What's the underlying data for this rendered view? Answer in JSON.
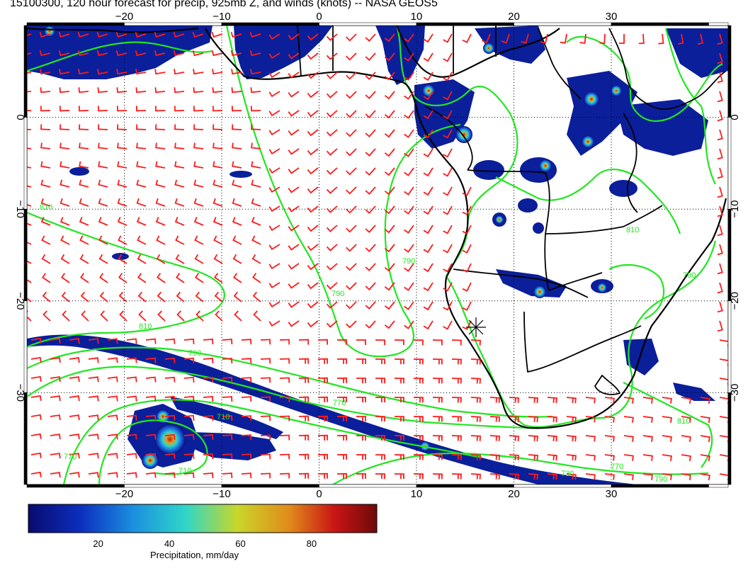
{
  "title": "15100300, 120 hour forecast for precip, 925mb Z, and winds (knots) -- NASA GEOS5",
  "map": {
    "lon_ticks": [
      "−20",
      "−10",
      "0",
      "10",
      "20",
      "30"
    ],
    "lat_ticks": [
      "0",
      "−10",
      "−20",
      "−30"
    ],
    "lon_range": [
      -30,
      42
    ],
    "lat_range": [
      -40,
      10
    ],
    "contour_labels": [
      "810",
      "810",
      "790",
      "770",
      "770",
      "710",
      "710",
      "730",
      "770",
      "790",
      "810",
      "790",
      "790",
      "810",
      "790"
    ]
  },
  "colorbar": {
    "ticks": [
      "20",
      "40",
      "60",
      "80"
    ],
    "label": "Precipitation, mm/day",
    "stops": [
      "#0a0a6e",
      "#0b2fbf",
      "#1b8fe0",
      "#2ed6c8",
      "#c9d62a",
      "#e08a1a",
      "#c81414",
      "#6e0a0a"
    ]
  },
  "colors": {
    "wind_barb": "#ff1a1a",
    "contour": "#22e622",
    "coast": "#000000",
    "grid": "#000000"
  }
}
